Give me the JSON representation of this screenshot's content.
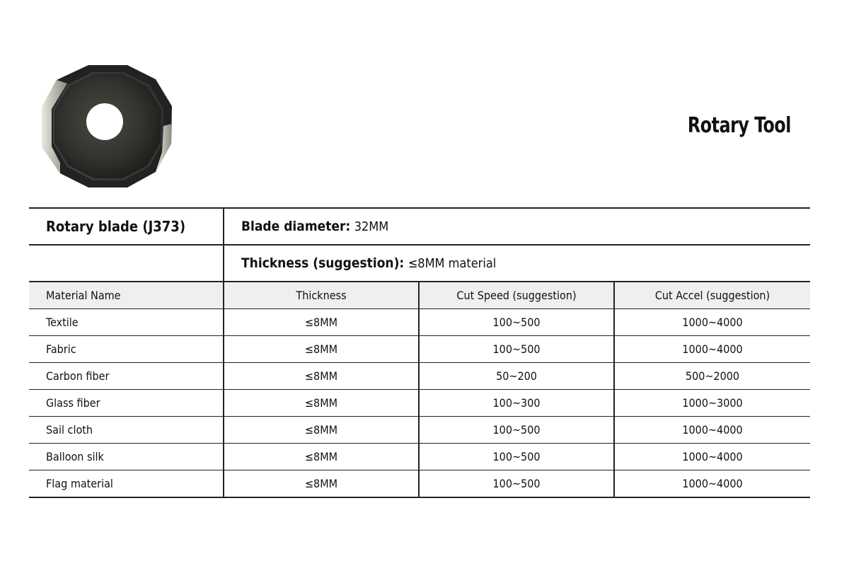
{
  "title": "Rotary Tool",
  "blade_image": {
    "icon": "rotary-blade-photo"
  },
  "spec": {
    "product": "Rotary blade (J373)",
    "diameter_label": "Blade diameter:",
    "diameter_value": "32MM",
    "thickness_label": "Thickness (suggestion):",
    "thickness_value": "≤8MM material"
  },
  "table": {
    "headers": [
      "Material Name",
      "Thickness",
      "Cut Speed (suggestion)",
      "Cut Accel (suggestion)"
    ],
    "rows": [
      [
        "Textile",
        "≤8MM",
        "100~500",
        "1000~4000"
      ],
      [
        "Fabric",
        "≤8MM",
        "100~500",
        "1000~4000"
      ],
      [
        "Carbon fiber",
        "≤8MM",
        "50~200",
        "500~2000"
      ],
      [
        "Glass fiber",
        "≤8MM",
        "100~300",
        "1000~3000"
      ],
      [
        "Sail cloth",
        "≤8MM",
        "100~500",
        "1000~4000"
      ],
      [
        "Balloon silk",
        "≤8MM",
        "100~500",
        "1000~4000"
      ],
      [
        "Flag material",
        "≤8MM",
        "100~500",
        "1000~4000"
      ]
    ]
  }
}
